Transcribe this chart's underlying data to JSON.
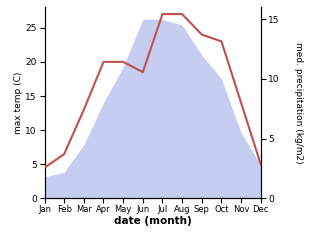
{
  "months": [
    "Jan",
    "Feb",
    "Mar",
    "Apr",
    "May",
    "Jun",
    "Jul",
    "Aug",
    "Sep",
    "Oct",
    "Nov",
    "Dec"
  ],
  "temp": [
    4.5,
    6.5,
    13.0,
    20.0,
    20.0,
    18.5,
    27.0,
    27.0,
    24.0,
    23.0,
    14.0,
    5.0
  ],
  "precip": [
    1.8,
    2.2,
    4.5,
    8.0,
    11.0,
    15.0,
    15.0,
    14.5,
    12.0,
    10.0,
    5.5,
    2.8
  ],
  "temp_color": "#c0504d",
  "precip_fill_color": "#c5cdf0",
  "xlabel": "date (month)",
  "ylabel_left": "max temp (C)",
  "ylabel_right": "med. precipitation (kg/m2)",
  "ylim_left": [
    0,
    28
  ],
  "ylim_right": [
    0,
    16
  ],
  "yticks_left": [
    0,
    5,
    10,
    15,
    20,
    25
  ],
  "yticks_right": [
    0,
    5,
    10,
    15
  ],
  "temp_lw": 1.5
}
